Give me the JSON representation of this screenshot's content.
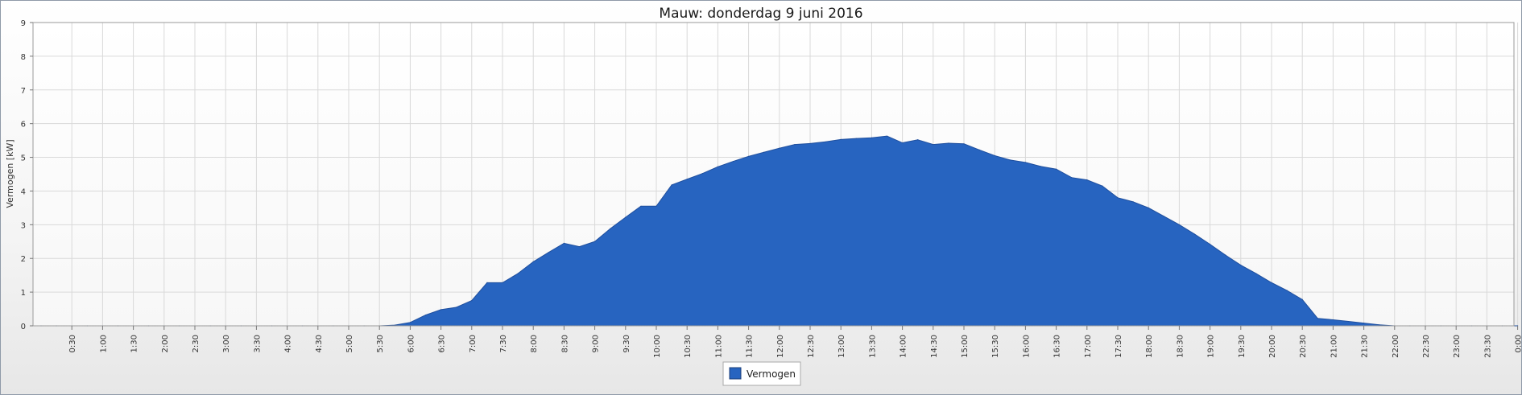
{
  "chart_data": {
    "type": "area",
    "title": "Mauw: donderdag 9 juni 2016",
    "xlabel": "",
    "ylabel": "Vermogen [kW]",
    "ylim": [
      0,
      9
    ],
    "y_ticks": [
      "0",
      "1",
      "2",
      "3",
      "4",
      "5",
      "6",
      "7",
      "8",
      "9"
    ],
    "x_tick_labels": [
      "0:30",
      "1:00",
      "1:30",
      "2:00",
      "2:30",
      "3:00",
      "3:30",
      "4:00",
      "4:30",
      "5:00",
      "5:30",
      "6:00",
      "6:30",
      "7:00",
      "7:30",
      "8:00",
      "8:30",
      "9:00",
      "9:30",
      "10:00",
      "10:30",
      "11:00",
      "11:30",
      "12:00",
      "12:30",
      "13:00",
      "13:30",
      "14:00",
      "14:30",
      "15:00",
      "15:30",
      "16:00",
      "16:30",
      "17:00",
      "17:30",
      "18:00",
      "18:30",
      "19:00",
      "19:30",
      "20:00",
      "20:30",
      "21:00",
      "21:30",
      "22:00",
      "22:30",
      "23:00",
      "23:30",
      "0:00"
    ],
    "grid": true,
    "legend_position": "bottom-center",
    "series": [
      {
        "name": "Vermogen",
        "color": "#2764c0",
        "x": [
          "0:00",
          "0:15",
          "0:30",
          "0:45",
          "1:00",
          "1:15",
          "1:30",
          "1:45",
          "2:00",
          "2:15",
          "2:30",
          "2:45",
          "3:00",
          "3:15",
          "3:30",
          "3:45",
          "4:00",
          "4:15",
          "4:30",
          "4:45",
          "5:00",
          "5:15",
          "5:30",
          "5:45",
          "6:00",
          "6:15",
          "6:30",
          "6:45",
          "7:00",
          "7:15",
          "7:30",
          "7:45",
          "8:00",
          "8:15",
          "8:30",
          "8:45",
          "9:00",
          "9:15",
          "9:30",
          "9:45",
          "10:00",
          "10:15",
          "10:30",
          "10:45",
          "11:00",
          "11:15",
          "11:30",
          "11:45",
          "12:00",
          "12:15",
          "12:30",
          "12:45",
          "13:00",
          "13:15",
          "13:30",
          "13:45",
          "14:00",
          "14:15",
          "14:30",
          "14:45",
          "15:00",
          "15:15",
          "15:30",
          "15:45",
          "16:00",
          "16:15",
          "16:30",
          "16:45",
          "17:00",
          "17:15",
          "17:30",
          "17:45",
          "18:00",
          "18:15",
          "18:30",
          "18:45",
          "19:00",
          "19:15",
          "19:30",
          "19:45",
          "20:00",
          "20:15",
          "20:30",
          "20:45",
          "21:00",
          "21:15",
          "21:30",
          "21:45",
          "22:00",
          "22:15",
          "22:30",
          "22:45",
          "23:00",
          "23:15",
          "23:30",
          "23:45",
          "0:00"
        ],
        "values": [
          0,
          0,
          0,
          0,
          0,
          0,
          0,
          0,
          0,
          0,
          0,
          0,
          0,
          0,
          0,
          0,
          0,
          0,
          0,
          0,
          0,
          0,
          0,
          0.02,
          0.1,
          0.32,
          0.48,
          0.55,
          0.75,
          1.28,
          1.28,
          1.55,
          1.9,
          2.18,
          2.45,
          2.35,
          2.5,
          2.88,
          3.22,
          3.55,
          3.55,
          4.18,
          4.35,
          4.52,
          4.72,
          4.88,
          5.03,
          5.15,
          5.27,
          5.38,
          5.41,
          5.46,
          5.53,
          5.56,
          5.58,
          5.63,
          5.43,
          5.52,
          5.38,
          5.42,
          5.4,
          5.22,
          5.05,
          4.92,
          4.85,
          4.73,
          4.65,
          4.4,
          4.33,
          4.15,
          3.8,
          3.68,
          3.5,
          3.25,
          3.0,
          2.72,
          2.42,
          2.1,
          1.8,
          1.55,
          1.28,
          1.05,
          0.78,
          0.22,
          0.18,
          0.13,
          0.08,
          0.03,
          0,
          0,
          0,
          0,
          0,
          0,
          0,
          0,
          0
        ]
      }
    ]
  }
}
